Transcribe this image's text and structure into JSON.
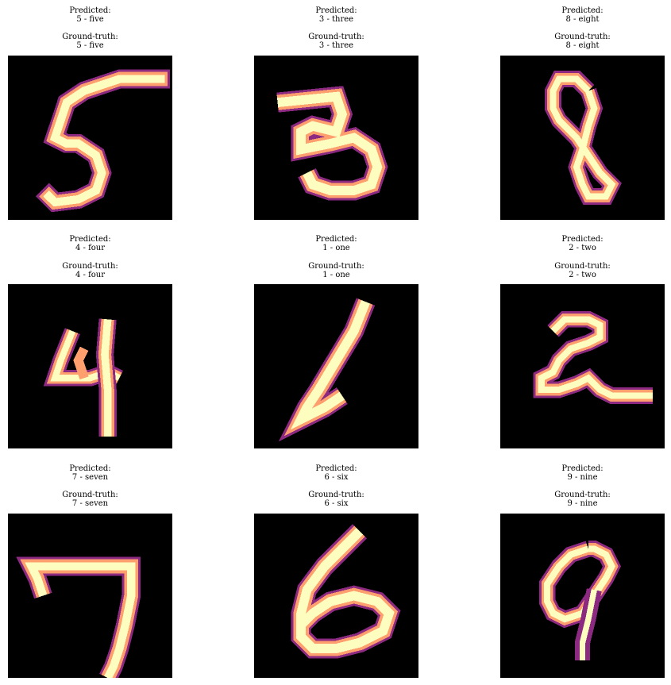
{
  "figure": {
    "pred_label": "Predicted:",
    "gt_label": "Ground-truth:",
    "colormap": [
      "#000004",
      "#3b0f70",
      "#8c2981",
      "#de4968",
      "#fe9f6d",
      "#fcfdbf"
    ],
    "panels": [
      {
        "pred": "5 - five",
        "gt": "5 - five",
        "digit": "5"
      },
      {
        "pred": "3 - three",
        "gt": "3 - three",
        "digit": "3"
      },
      {
        "pred": "8 - eight",
        "gt": "8 - eight",
        "digit": "8"
      },
      {
        "pred": "4 - four",
        "gt": "4 - four",
        "digit": "4"
      },
      {
        "pred": "1 - one",
        "gt": "1 - one",
        "digit": "1"
      },
      {
        "pred": "2 - two",
        "gt": "2 - two",
        "digit": "2"
      },
      {
        "pred": "7 - seven",
        "gt": "7 - seven",
        "digit": "7"
      },
      {
        "pred": "6 - six",
        "gt": "6 - six",
        "digit": "6"
      },
      {
        "pred": "9 - nine",
        "gt": "9 - nine",
        "digit": "9"
      }
    ]
  }
}
